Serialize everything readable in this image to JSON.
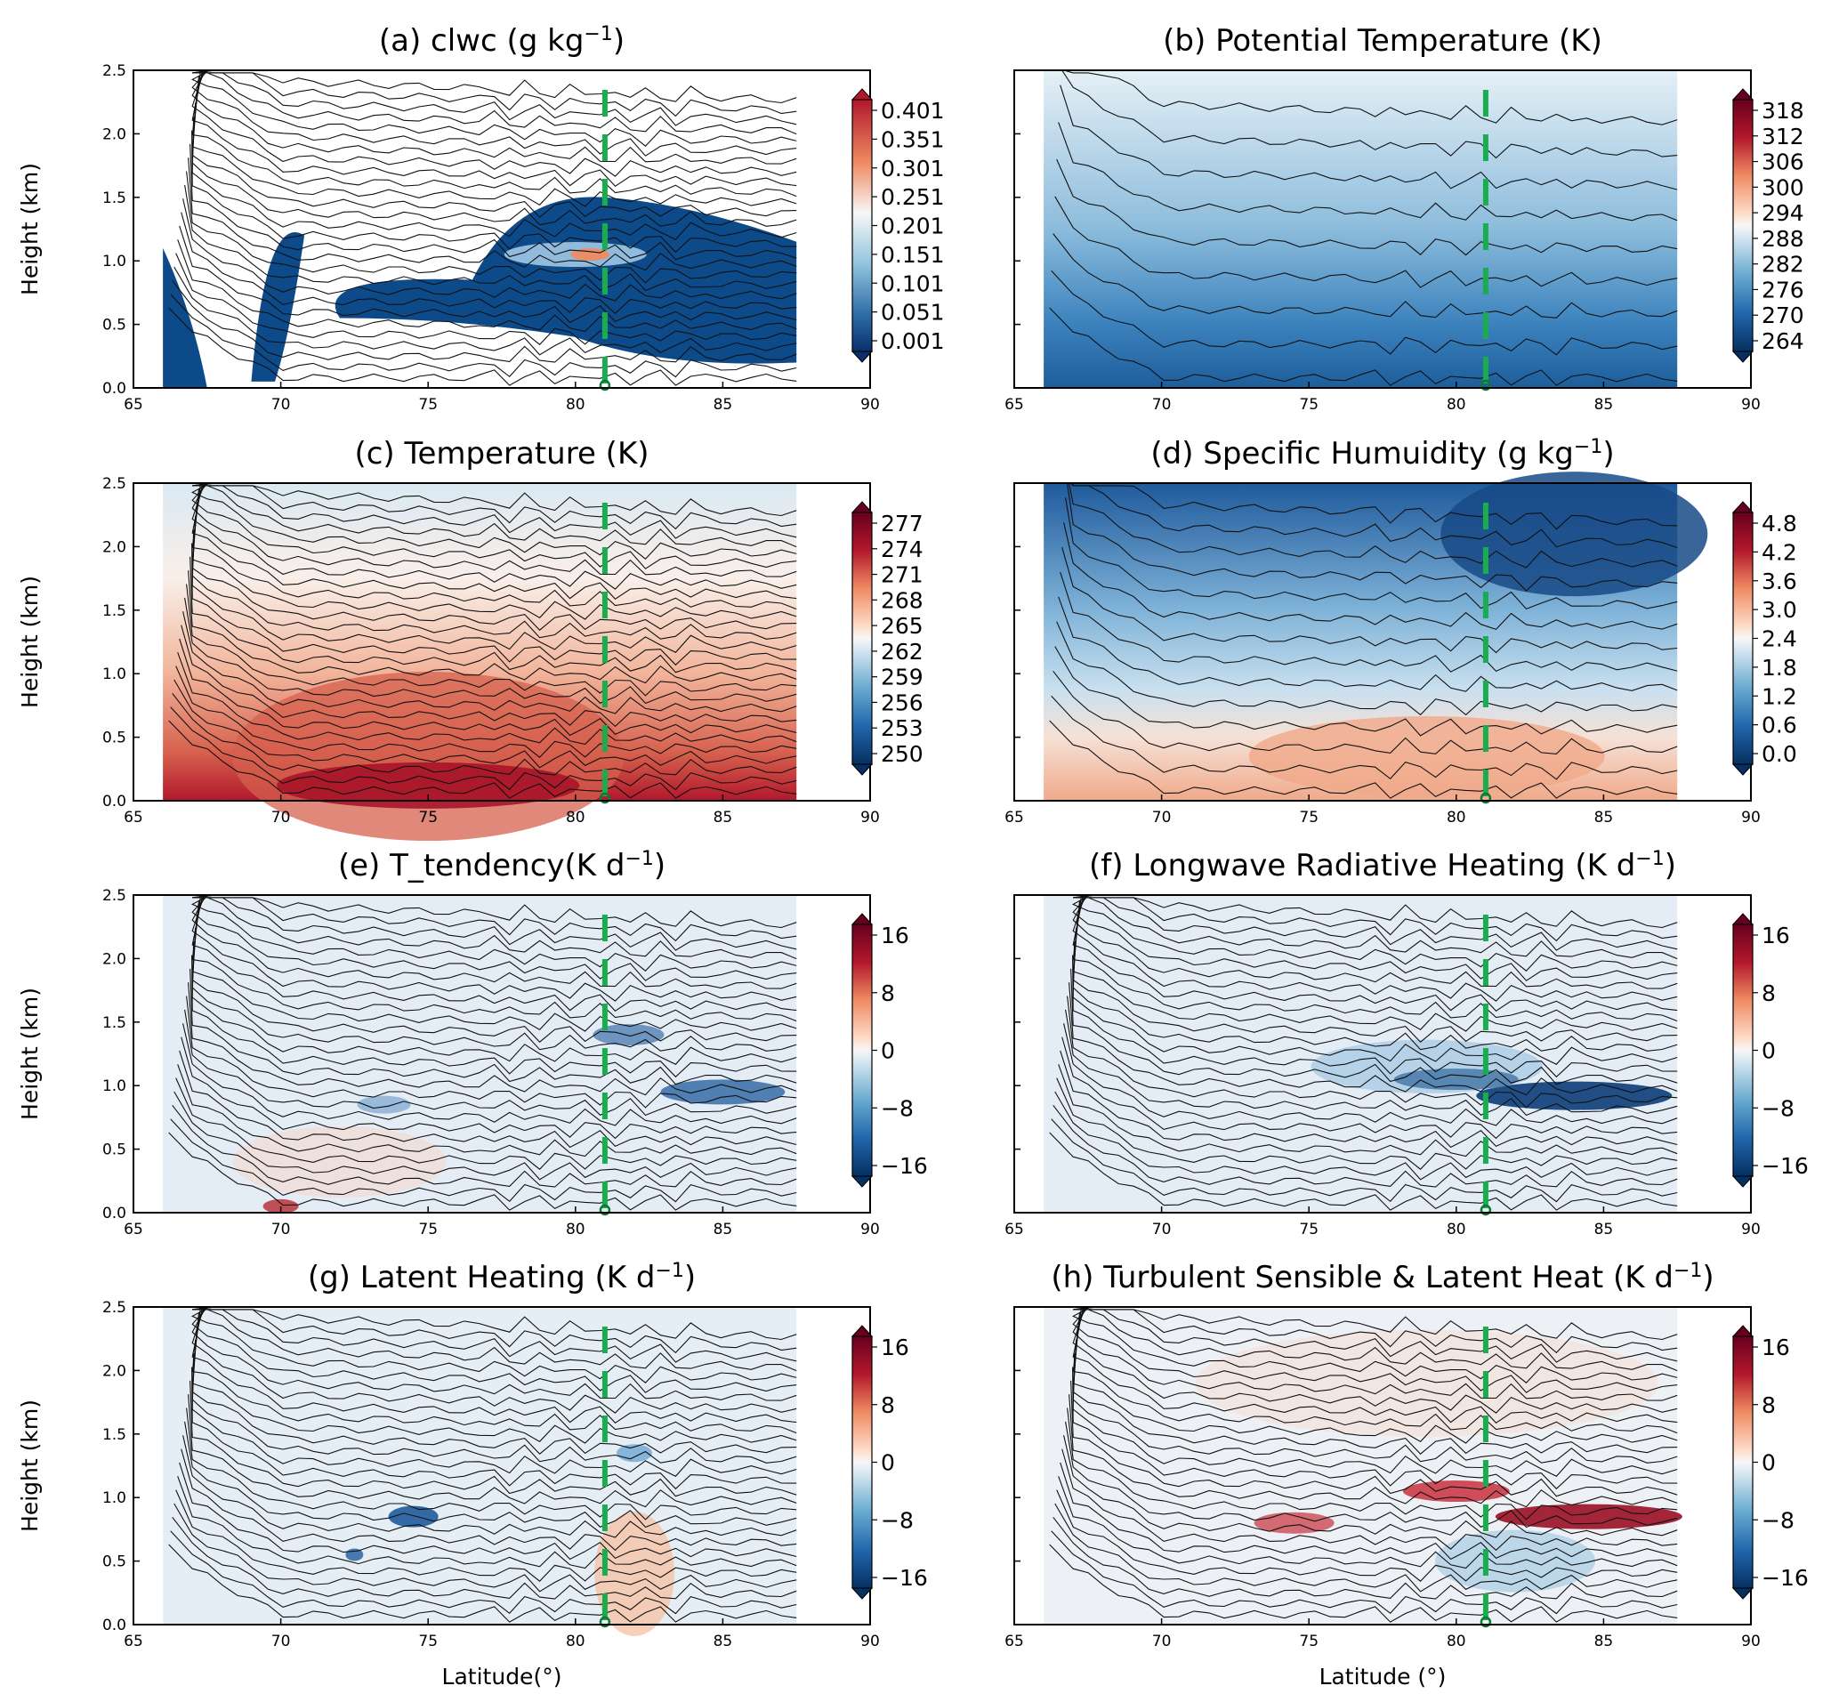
{
  "figure": {
    "xlabel": "Latitude(°)",
    "xlabel_right": "Latitude (°)",
    "ylabel": "Height (km)",
    "xticks": [
      "65",
      "70",
      "75",
      "80",
      "85",
      "90"
    ],
    "yticks": [
      "0.0",
      "0.5",
      "1.0",
      "1.5",
      "2.0",
      "2.5"
    ],
    "colors": {
      "marker": "#1aad4f",
      "cool": "#1f5a9c",
      "warm": "#b7262f"
    }
  },
  "chart_data": [
    {
      "panel": "a",
      "type": "heatmap",
      "title_pre": "(a) clwc (g kg",
      "title_sup": "−1",
      "title_post": ")",
      "colorbar": [
        "0.401",
        "0.351",
        "0.301",
        "0.251",
        "0.201",
        "0.151",
        "0.101",
        "0.051",
        "0.001"
      ],
      "colormap": "blues-to-red",
      "xlim": [
        65,
        90
      ],
      "ylim": [
        0,
        2.5
      ],
      "marker_x": 81
    },
    {
      "panel": "b",
      "type": "heatmap",
      "title_pre": "(b) Potential Temperature (K)",
      "title_sup": "",
      "title_post": "",
      "colorbar": [
        "318",
        "312",
        "306",
        "300",
        "294",
        "288",
        "282",
        "276",
        "270",
        "264"
      ],
      "colormap": "RdBu_r",
      "xlim": [
        65,
        90
      ],
      "ylim": [
        0,
        2.5
      ],
      "marker_x": 81
    },
    {
      "panel": "c",
      "type": "heatmap",
      "title_pre": "(c) Temperature (K)",
      "title_sup": "",
      "title_post": "",
      "colorbar": [
        "277",
        "274",
        "271",
        "268",
        "265",
        "262",
        "259",
        "256",
        "253",
        "250"
      ],
      "colormap": "RdBu_r",
      "xlim": [
        65,
        90
      ],
      "ylim": [
        0,
        2.5
      ],
      "marker_x": 81
    },
    {
      "panel": "d",
      "type": "heatmap",
      "title_pre": "(d) Specific Humuidity (g kg",
      "title_sup": "−1",
      "title_post": ")",
      "colorbar": [
        "4.8",
        "4.2",
        "3.6",
        "3.0",
        "2.4",
        "1.8",
        "1.2",
        "0.6",
        "0.0"
      ],
      "colormap": "RdBu_r",
      "xlim": [
        65,
        90
      ],
      "ylim": [
        0,
        2.5
      ],
      "marker_x": 81
    },
    {
      "panel": "e",
      "type": "heatmap",
      "title_pre": "(e) T_tendency(K d",
      "title_sup": "−1",
      "title_post": ")",
      "colorbar": [
        "16",
        "8",
        "0",
        "−8",
        "−16"
      ],
      "colormap": "RdBu_r",
      "xlim": [
        65,
        90
      ],
      "ylim": [
        0,
        2.5
      ],
      "marker_x": 81
    },
    {
      "panel": "f",
      "type": "heatmap",
      "title_pre": "(f) Longwave Radiative Heating (K d",
      "title_sup": "−1",
      "title_post": ")",
      "colorbar": [
        "16",
        "8",
        "0",
        "−8",
        "−16"
      ],
      "colormap": "RdBu_r",
      "xlim": [
        65,
        90
      ],
      "ylim": [
        0,
        2.5
      ],
      "marker_x": 81
    },
    {
      "panel": "g",
      "type": "heatmap",
      "title_pre": "(g) Latent Heating (K d",
      "title_sup": "−1",
      "title_post": ")",
      "colorbar": [
        "16",
        "8",
        "0",
        "−8",
        "−16"
      ],
      "colormap": "RdBu_r",
      "xlim": [
        65,
        90
      ],
      "ylim": [
        0,
        2.5
      ],
      "marker_x": 81
    },
    {
      "panel": "h",
      "type": "heatmap",
      "title_pre": "(h) Turbulent Sensible & Latent Heat (K d",
      "title_sup": "−1",
      "title_post": ")",
      "colorbar": [
        "16",
        "8",
        "0",
        "−8",
        "−16"
      ],
      "colormap": "RdBu_r",
      "xlim": [
        65,
        90
      ],
      "ylim": [
        0,
        2.5
      ],
      "marker_x": 81
    }
  ]
}
